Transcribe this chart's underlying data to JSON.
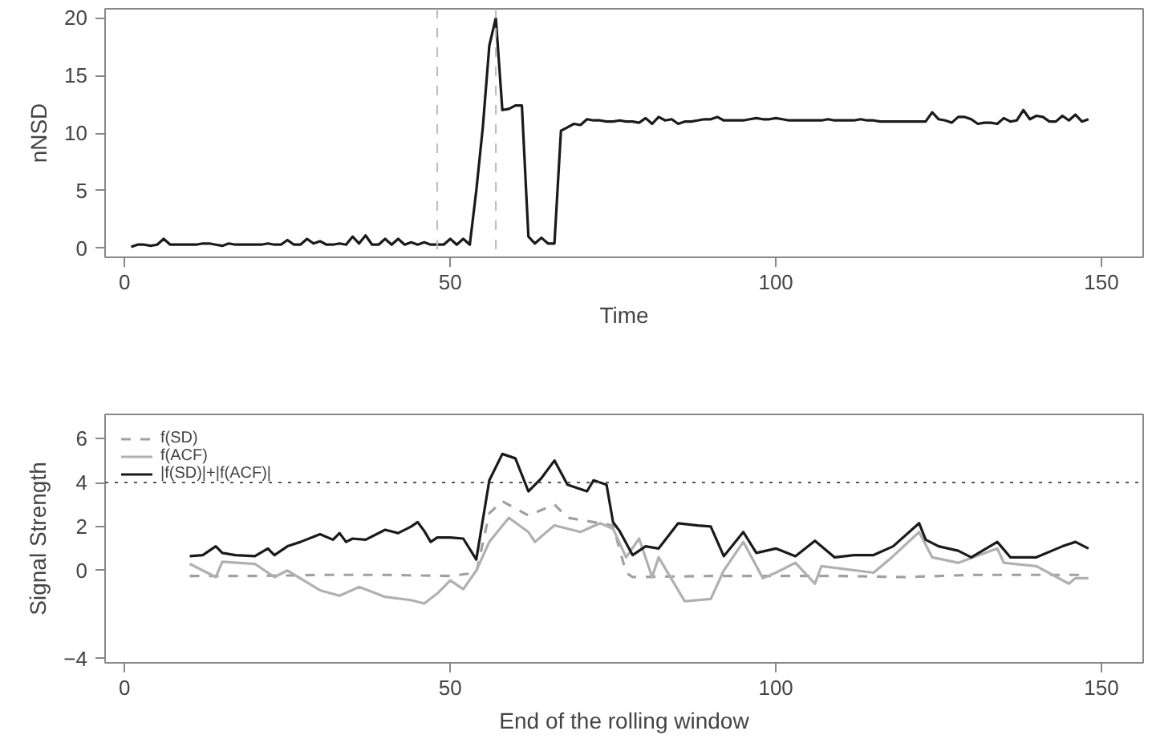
{
  "chart_data": [
    {
      "type": "line",
      "xlabel": "Time",
      "ylabel": "nNSD",
      "xlim": [
        -3,
        156.4
      ],
      "xticks": [
        0,
        50,
        100,
        150
      ],
      "ylim": [
        -0.8,
        20.8
      ],
      "yticks": [
        0,
        5,
        10,
        15,
        20
      ],
      "grid": false,
      "legend": false,
      "ref_lines": [
        {
          "axis": "x",
          "value": 48,
          "color": "#bbbbbb",
          "line_style": "dashed"
        },
        {
          "axis": "x",
          "value": 57,
          "color": "#bbbbbb",
          "line_style": "dashed"
        }
      ],
      "series": [
        {
          "color": "#1a1a1a",
          "line_style": "solid",
          "x": [
            1,
            2,
            3,
            4,
            5,
            6,
            7,
            8,
            9,
            10,
            11,
            12,
            13,
            14,
            15,
            16,
            17,
            18,
            19,
            20,
            21,
            22,
            23,
            24,
            25,
            26,
            27,
            28,
            29,
            30,
            31,
            32,
            33,
            34,
            35,
            36,
            37,
            38,
            39,
            40,
            41,
            42,
            43,
            44,
            45,
            46,
            47,
            48,
            49,
            50,
            51,
            52,
            53,
            54,
            55,
            56,
            57,
            58,
            59,
            60,
            61,
            62,
            63,
            64,
            65,
            66,
            67,
            68,
            69,
            70,
            71,
            72,
            73,
            74,
            75,
            76,
            77,
            78,
            79,
            80,
            81,
            82,
            83,
            84,
            85,
            86,
            87,
            88,
            89,
            90,
            91,
            92,
            93,
            94,
            95,
            96,
            97,
            98,
            99,
            100,
            101,
            102,
            103,
            104,
            105,
            106,
            107,
            108,
            109,
            110,
            111,
            112,
            113,
            114,
            115,
            116,
            117,
            118,
            119,
            120,
            121,
            122,
            123,
            124,
            125,
            126,
            127,
            128,
            129,
            130,
            131,
            132,
            133,
            134,
            135,
            136,
            137,
            138,
            139,
            140,
            141,
            142,
            143,
            144,
            145,
            146,
            147,
            148
          ],
          "values": [
            0.1,
            0.3,
            0.3,
            0.2,
            0.3,
            0.8,
            0.3,
            0.3,
            0.3,
            0.3,
            0.3,
            0.4,
            0.4,
            0.3,
            0.2,
            0.4,
            0.3,
            0.3,
            0.3,
            0.3,
            0.3,
            0.4,
            0.3,
            0.3,
            0.7,
            0.3,
            0.3,
            0.8,
            0.4,
            0.6,
            0.3,
            0.3,
            0.4,
            0.3,
            1.0,
            0.4,
            1.1,
            0.3,
            0.3,
            0.8,
            0.3,
            0.8,
            0.3,
            0.5,
            0.3,
            0.5,
            0.3,
            0.3,
            0.3,
            0.8,
            0.3,
            0.8,
            0.3,
            5.0,
            10.5,
            17.6,
            20,
            12,
            12.1,
            12.4,
            12.4,
            1.0,
            0.4,
            0.9,
            0.4,
            0.4,
            10.2,
            10.5,
            10.8,
            10.7,
            11.2,
            11.1,
            11.1,
            11.0,
            11.0,
            11.1,
            11.0,
            11.0,
            10.9,
            11.3,
            10.8,
            11.4,
            11.1,
            11.2,
            10.8,
            11.0,
            11.0,
            11.1,
            11.2,
            11.2,
            11.4,
            11.1,
            11.1,
            11.1,
            11.1,
            11.2,
            11.3,
            11.2,
            11.2,
            11.3,
            11.2,
            11.1,
            11.1,
            11.1,
            11.1,
            11.1,
            11.1,
            11.2,
            11.1,
            11.1,
            11.1,
            11.1,
            11.2,
            11.1,
            11.1,
            11.0,
            11.0,
            11.0,
            11.0,
            11.0,
            11.0,
            11.0,
            11.0,
            11.8,
            11.2,
            11.1,
            10.9,
            11.4,
            11.4,
            11.2,
            10.8,
            10.9,
            10.9,
            10.8,
            11.3,
            11.0,
            11.1,
            12.0,
            11.2,
            11.5,
            11.4,
            11.0,
            11.0,
            11.5,
            11.1,
            11.6,
            11.0,
            11.2
          ]
        }
      ]
    },
    {
      "type": "line",
      "xlabel": "End of the rolling window",
      "ylabel": "Signal Strength",
      "xlim": [
        -3,
        156.4
      ],
      "xticks": [
        0,
        50,
        100,
        150
      ],
      "ylim": [
        -4.2,
        7.1
      ],
      "yticks": [
        -4,
        0,
        2,
        4,
        6
      ],
      "grid": false,
      "legend": "top left",
      "ref_lines": [
        {
          "axis": "y",
          "value": 4,
          "color": "#555555",
          "line_style": "dotted"
        }
      ],
      "series": [
        {
          "name": "f(SD)",
          "color": "#a0a0a0",
          "line_style": "dashed",
          "x": [
            10,
            20,
            30,
            40,
            50,
            54,
            56,
            58,
            62,
            66,
            68,
            73,
            75,
            77,
            78,
            90,
            100,
            110,
            120,
            130,
            140,
            148
          ],
          "values": [
            -0.25,
            -0.25,
            -0.2,
            -0.2,
            -0.25,
            -0.1,
            2.6,
            3.15,
            2.5,
            3.0,
            2.4,
            2.15,
            2.05,
            -0.1,
            -0.3,
            -0.25,
            -0.25,
            -0.25,
            -0.3,
            -0.2,
            -0.2,
            -0.2
          ]
        },
        {
          "name": "f(ACF)",
          "color": "#b0b0b0",
          "line_style": "solid",
          "x": [
            10,
            12,
            14,
            15,
            20,
            23,
            25,
            30,
            33,
            36,
            40,
            44,
            46,
            48,
            50,
            52,
            54,
            56,
            59,
            62,
            63,
            66,
            70,
            73,
            75,
            77,
            79,
            81,
            82,
            86,
            90,
            92,
            95,
            98,
            100,
            103,
            106,
            107,
            115,
            118,
            122,
            124,
            128,
            134,
            135,
            140,
            145,
            146,
            148
          ],
          "values": [
            0.3,
            0,
            -0.3,
            0.4,
            0.3,
            -0.3,
            0,
            -0.9,
            -1.15,
            -0.75,
            -1.2,
            -1.35,
            -1.5,
            -1.05,
            -0.45,
            -0.85,
            0,
            1.3,
            2.4,
            1.75,
            1.3,
            2.05,
            1.75,
            2.15,
            1.9,
            0.6,
            1.45,
            -0.3,
            0.6,
            -1.4,
            -1.3,
            0,
            1.3,
            -0.35,
            -0.1,
            0.35,
            -0.6,
            0.2,
            -0.1,
            0.65,
            1.75,
            0.6,
            0.35,
            1.0,
            0.35,
            0.2,
            -0.6,
            -0.35,
            -0.35
          ]
        },
        {
          "name": "|f(SD)|+|f(ACF)|",
          "color": "#1a1a1a",
          "line_style": "solid",
          "x": [
            10,
            12,
            14,
            15,
            17,
            20,
            22,
            23,
            25,
            27,
            30,
            32,
            33,
            34,
            35,
            37,
            40,
            42,
            44,
            45,
            46,
            47,
            48,
            50,
            52,
            54,
            56,
            58,
            60,
            62,
            64,
            66,
            68,
            71,
            72,
            74,
            75,
            76,
            78,
            80,
            82,
            85,
            88,
            90,
            92,
            95,
            97,
            100,
            103,
            106,
            109,
            112,
            115,
            118,
            122,
            123,
            125,
            128,
            130,
            134,
            136,
            140,
            144,
            146,
            148
          ],
          "values": [
            0.65,
            0.7,
            1.1,
            0.8,
            0.7,
            0.65,
            1.0,
            0.7,
            1.1,
            1.3,
            1.65,
            1.4,
            1.7,
            1.3,
            1.45,
            1.4,
            1.85,
            1.7,
            2.0,
            2.2,
            1.8,
            1.3,
            1.5,
            1.5,
            1.45,
            0.5,
            4.1,
            5.3,
            5.1,
            3.6,
            4.2,
            5.0,
            3.9,
            3.6,
            4.1,
            3.9,
            2.2,
            1.8,
            0.7,
            1.1,
            1.0,
            2.15,
            2.05,
            2.0,
            0.65,
            1.75,
            0.8,
            1.0,
            0.65,
            1.35,
            0.6,
            0.7,
            0.7,
            1.1,
            2.15,
            1.4,
            1.1,
            0.9,
            0.6,
            1.3,
            0.6,
            0.6,
            1.1,
            1.3,
            1.0
          ]
        }
      ]
    }
  ]
}
